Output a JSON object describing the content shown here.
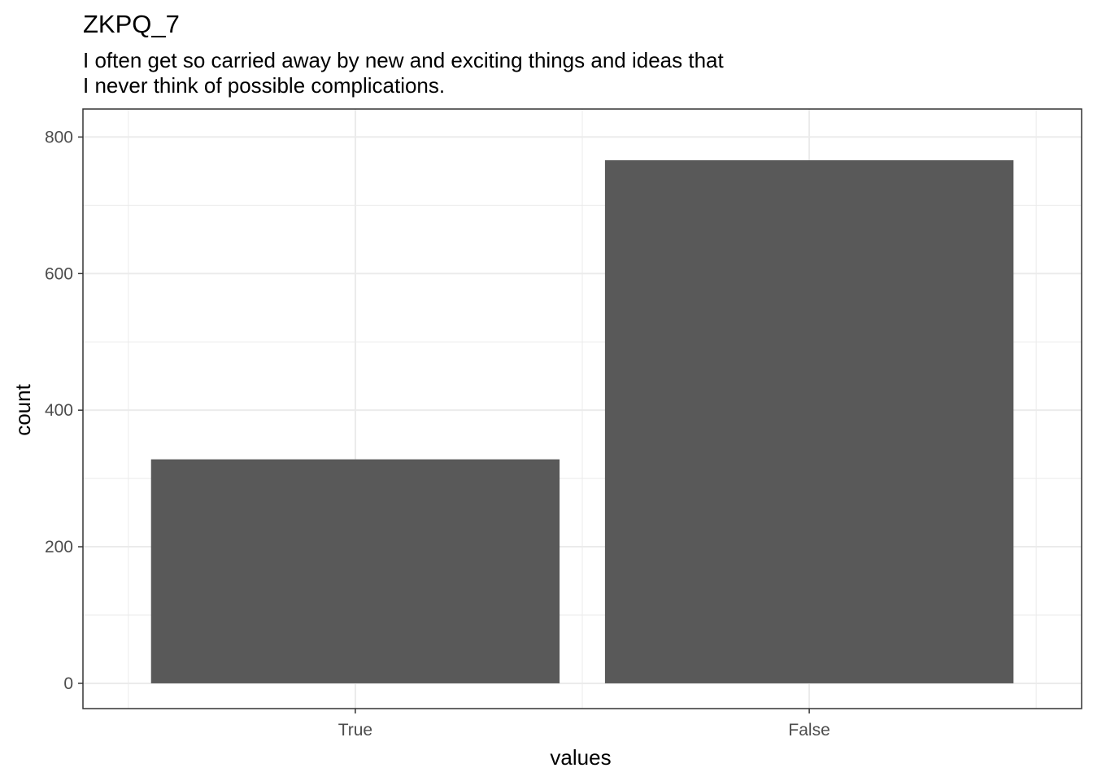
{
  "chart_data": {
    "type": "bar",
    "title": "ZKPQ_7",
    "subtitle_lines": [
      "I often get so carried away by new and exciting things and ideas that",
      "I never think of possible complications."
    ],
    "xlabel": "values",
    "ylabel": "count",
    "categories": [
      "True",
      "False"
    ],
    "values": [
      328,
      766
    ],
    "ylim": [
      -37,
      841
    ],
    "yticks": [
      0,
      200,
      400,
      600,
      800
    ],
    "ytick_labels": [
      "0",
      "200",
      "400",
      "600",
      "800"
    ],
    "grid": true,
    "bar_color": "#595959",
    "panel_border_color": "#333333",
    "grid_color": "#ebebeb"
  }
}
